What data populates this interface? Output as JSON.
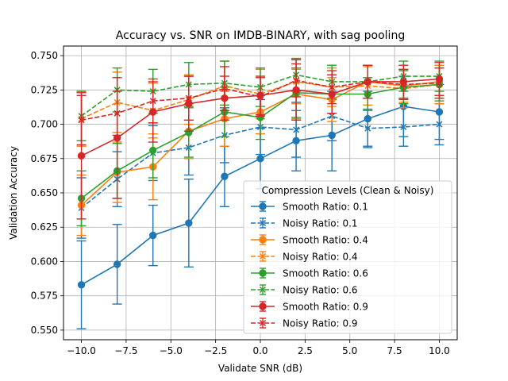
{
  "chart_data": {
    "type": "line",
    "title": "Accuracy vs. SNR on IMDB-BINARY, with sag pooling",
    "xlabel": "Validate SNR (dB)",
    "ylabel": "Validation Accuracy",
    "xlim": [
      -11,
      11
    ],
    "ylim": [
      0.543,
      0.757
    ],
    "x_ticks": [
      -10.0,
      -7.5,
      -5.0,
      -2.5,
      0.0,
      2.5,
      5.0,
      7.5,
      10.0
    ],
    "x_tick_labels": [
      "−10.0",
      "−7.5",
      "−5.0",
      "−2.5",
      "0.0",
      "2.5",
      "5.0",
      "7.5",
      "10.0"
    ],
    "y_ticks": [
      0.55,
      0.575,
      0.6,
      0.625,
      0.65,
      0.675,
      0.7,
      0.725,
      0.75
    ],
    "y_tick_labels": [
      "0.550",
      "0.575",
      "0.600",
      "0.625",
      "0.650",
      "0.675",
      "0.700",
      "0.725",
      "0.750"
    ],
    "grid": true,
    "legend": {
      "title": "Compression Levels (Clean & Noisy)",
      "placement": "lower-right"
    },
    "x": [
      -10,
      -8,
      -6,
      -4,
      -2,
      0,
      2,
      4,
      6,
      8,
      10
    ],
    "series": [
      {
        "name": "Smooth Ratio: 0.1",
        "color": "#1f77b4",
        "style": "solid",
        "marker": "circle",
        "values": [
          0.583,
          0.598,
          0.619,
          0.628,
          0.662,
          0.675,
          0.688,
          0.692,
          0.704,
          0.713,
          0.709
        ],
        "errors": [
          0.032,
          0.029,
          0.022,
          0.032,
          0.022,
          0.022,
          0.022,
          0.026,
          0.02,
          0.022,
          0.02
        ]
      },
      {
        "name": "Noisy Ratio: 0.1",
        "color": "#1f77b4",
        "style": "dashed",
        "marker": "x",
        "values": [
          0.639,
          0.66,
          0.679,
          0.683,
          0.692,
          0.698,
          0.696,
          0.706,
          0.697,
          0.698,
          0.7
        ],
        "errors": [
          0.022,
          0.02,
          0.02,
          0.02,
          0.02,
          0.02,
          0.02,
          0.018,
          0.014,
          0.014,
          0.015
        ]
      },
      {
        "name": "Smooth Ratio: 0.4",
        "color": "#ff7f0e",
        "style": "solid",
        "marker": "circle",
        "values": [
          0.641,
          0.665,
          0.669,
          0.695,
          0.704,
          0.709,
          0.722,
          0.718,
          0.731,
          0.728,
          0.731
        ],
        "errors": [
          0.022,
          0.022,
          0.024,
          0.02,
          0.02,
          0.016,
          0.018,
          0.016,
          0.012,
          0.012,
          0.012
        ]
      },
      {
        "name": "Noisy Ratio: 0.4",
        "color": "#ff7f0e",
        "style": "dashed",
        "marker": "x",
        "values": [
          0.704,
          0.716,
          0.71,
          0.718,
          0.728,
          0.722,
          0.731,
          0.727,
          0.728,
          0.726,
          0.729
        ],
        "errors": [
          0.02,
          0.022,
          0.02,
          0.018,
          0.018,
          0.018,
          0.016,
          0.014,
          0.014,
          0.014,
          0.014
        ]
      },
      {
        "name": "Smooth Ratio: 0.6",
        "color": "#2ca02c",
        "style": "solid",
        "marker": "circle",
        "values": [
          0.646,
          0.666,
          0.681,
          0.694,
          0.709,
          0.705,
          0.723,
          0.722,
          0.722,
          0.727,
          0.729
        ],
        "errors": [
          0.02,
          0.02,
          0.02,
          0.018,
          0.018,
          0.016,
          0.018,
          0.014,
          0.012,
          0.012,
          0.012
        ]
      },
      {
        "name": "Noisy Ratio: 0.6",
        "color": "#2ca02c",
        "style": "dashed",
        "marker": "x",
        "values": [
          0.706,
          0.725,
          0.724,
          0.729,
          0.73,
          0.727,
          0.736,
          0.731,
          0.731,
          0.735,
          0.735
        ],
        "errors": [
          0.018,
          0.016,
          0.016,
          0.016,
          0.016,
          0.014,
          0.012,
          0.012,
          0.012,
          0.011,
          0.011
        ]
      },
      {
        "name": "Smooth Ratio: 0.9",
        "color": "#d62728",
        "style": "solid",
        "marker": "circle",
        "values": [
          0.677,
          0.69,
          0.709,
          0.715,
          0.719,
          0.721,
          0.725,
          0.722,
          0.731,
          0.731,
          0.733
        ],
        "errors": [
          0.046,
          0.044,
          0.022,
          0.02,
          0.016,
          0.014,
          0.022,
          0.014,
          0.012,
          0.012,
          0.012
        ]
      },
      {
        "name": "Noisy Ratio: 0.9",
        "color": "#d62728",
        "style": "dashed",
        "marker": "x",
        "values": [
          0.703,
          0.708,
          0.717,
          0.719,
          0.726,
          0.72,
          0.732,
          0.727,
          0.731,
          0.729,
          0.73
        ],
        "errors": [
          0.018,
          0.016,
          0.016,
          0.016,
          0.016,
          0.014,
          0.012,
          0.012,
          0.012,
          0.011,
          0.011
        ]
      }
    ]
  }
}
